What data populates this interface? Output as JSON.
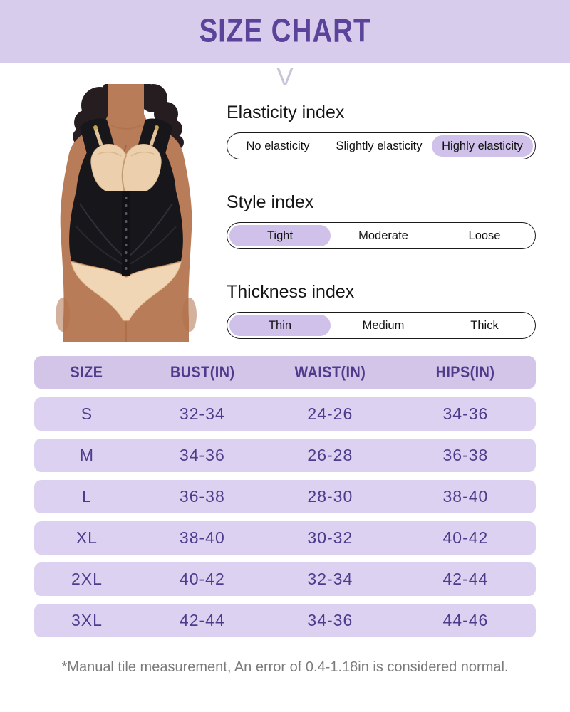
{
  "header": {
    "title": "SIZE CHART",
    "chevron_glyph": "V"
  },
  "model_photo": {
    "description": "woman wearing black open-bust waist-trainer vest with hook closure, nude bra and briefs"
  },
  "indexes": [
    {
      "label": "Elasticity index",
      "options": [
        "No elasticity",
        "Slightly elasticity",
        "Highly elasticity"
      ],
      "selected": 2
    },
    {
      "label": "Style index",
      "options": [
        "Tight",
        "Moderate",
        "Loose"
      ],
      "selected": 0
    },
    {
      "label": "Thickness index",
      "options": [
        "Thin",
        "Medium",
        "Thick"
      ],
      "selected": 0
    }
  ],
  "chart_data": {
    "type": "table",
    "title": "SIZE CHART",
    "columns": [
      "SIZE",
      "BUST(IN)",
      "WAIST(IN)",
      "HIPS(IN)"
    ],
    "rows": [
      [
        "S",
        "32-34",
        "24-26",
        "34-36"
      ],
      [
        "M",
        "34-36",
        "26-28",
        "36-38"
      ],
      [
        "L",
        "36-38",
        "28-30",
        "38-40"
      ],
      [
        "XL",
        "38-40",
        "30-32",
        "40-42"
      ],
      [
        "2XL",
        "40-42",
        "32-34",
        "42-44"
      ],
      [
        "3XL",
        "42-44",
        "34-36",
        "44-46"
      ]
    ]
  },
  "footnote": "*Manual tile measurement, An error of 0.4-1.18in is considered normal.",
  "colors": {
    "banner_bg": "#d8ccec",
    "title_text": "#5a4499",
    "selected_pill": "#cfc1e9",
    "table_header_bg": "#d3c5e8",
    "table_row_bg": "#dcd1f0",
    "table_text": "#4e3b8c",
    "footnote_text": "#7b7b7b"
  }
}
